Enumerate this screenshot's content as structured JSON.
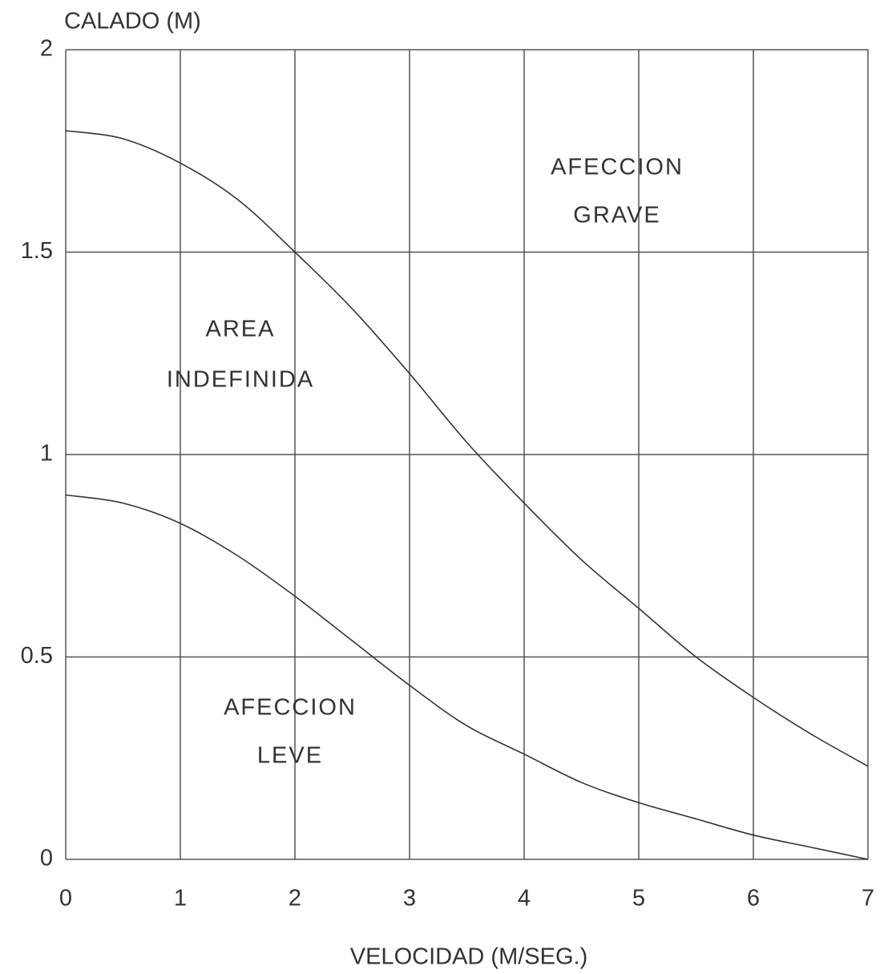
{
  "chart_data": {
    "type": "line",
    "title": "CALADO (M)",
    "x_label": "VELOCIDAD (M/SEG.)",
    "x": [
      0,
      0.5,
      1,
      1.5,
      2,
      2.5,
      3,
      3.5,
      4,
      4.5,
      5,
      5.5,
      6,
      6.5,
      7
    ],
    "series": [
      {
        "color": "#333333",
        "values": [
          1.8,
          1.78,
          1.72,
          1.63,
          1.5,
          1.36,
          1.2,
          1.03,
          0.88,
          0.74,
          0.62,
          0.5,
          0.4,
          0.31,
          0.23
        ]
      },
      {
        "color": "#333333",
        "values": [
          0.9,
          0.88,
          0.83,
          0.75,
          0.65,
          0.54,
          0.43,
          0.33,
          0.26,
          0.19,
          0.14,
          0.1,
          0.06,
          0.03,
          0.0
        ]
      }
    ],
    "annotations": [
      "AFECCION",
      "GRAVE",
      "AREA",
      "INDEFINIDA",
      "AFECCION",
      "LEVE"
    ],
    "xlim": [
      0,
      7
    ],
    "xticks": [
      0,
      1,
      2,
      3,
      4,
      5,
      6,
      7
    ],
    "ylim": [
      0,
      2
    ],
    "yticks": [
      0,
      0.5,
      1,
      1.5,
      2
    ],
    "grid": true
  }
}
